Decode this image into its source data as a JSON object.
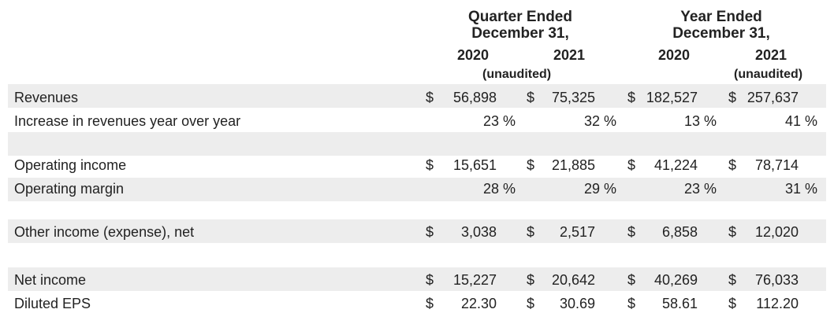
{
  "header": {
    "quarter_title": "Quarter Ended",
    "quarter_subtitle": "December 31,",
    "year_title": "Year Ended",
    "year_subtitle": "December 31,",
    "columns": [
      "2020",
      "2021",
      "2020",
      "2021"
    ],
    "unaudited": "(unaudited)"
  },
  "rows": [
    {
      "label": "Revenues",
      "cells": [
        {
          "cur": "$",
          "val": "56,898"
        },
        {
          "cur": "$",
          "val": "75,325"
        },
        {
          "cur": "$",
          "val": "182,527"
        },
        {
          "cur": "$",
          "val": "257,637"
        }
      ]
    },
    {
      "label": "Increase in revenues year over year",
      "cells": [
        {
          "val": "23 %"
        },
        {
          "val": "32 %"
        },
        {
          "val": "13 %"
        },
        {
          "val": "41 %"
        }
      ]
    },
    {
      "label": "Operating income",
      "cells": [
        {
          "cur": "$",
          "val": "15,651"
        },
        {
          "cur": "$",
          "val": "21,885"
        },
        {
          "cur": "$",
          "val": "41,224"
        },
        {
          "cur": "$",
          "val": "78,714"
        }
      ]
    },
    {
      "label": "Operating margin",
      "cells": [
        {
          "val": "28 %"
        },
        {
          "val": "29 %"
        },
        {
          "val": "23 %"
        },
        {
          "val": "31 %"
        }
      ]
    },
    {
      "label": "Other income (expense), net",
      "cells": [
        {
          "cur": "$",
          "val": "3,038"
        },
        {
          "cur": "$",
          "val": "2,517"
        },
        {
          "cur": "$",
          "val": "6,858"
        },
        {
          "cur": "$",
          "val": "12,020"
        }
      ]
    },
    {
      "label": "Net income",
      "cells": [
        {
          "cur": "$",
          "val": "15,227"
        },
        {
          "cur": "$",
          "val": "20,642"
        },
        {
          "cur": "$",
          "val": "40,269"
        },
        {
          "cur": "$",
          "val": "76,033"
        }
      ]
    },
    {
      "label": "Diluted EPS",
      "cells": [
        {
          "cur": "$",
          "val": "22.30"
        },
        {
          "cur": "$",
          "val": "30.69"
        },
        {
          "cur": "$",
          "val": "58.61"
        },
        {
          "cur": "$",
          "val": "112.20"
        }
      ]
    }
  ]
}
